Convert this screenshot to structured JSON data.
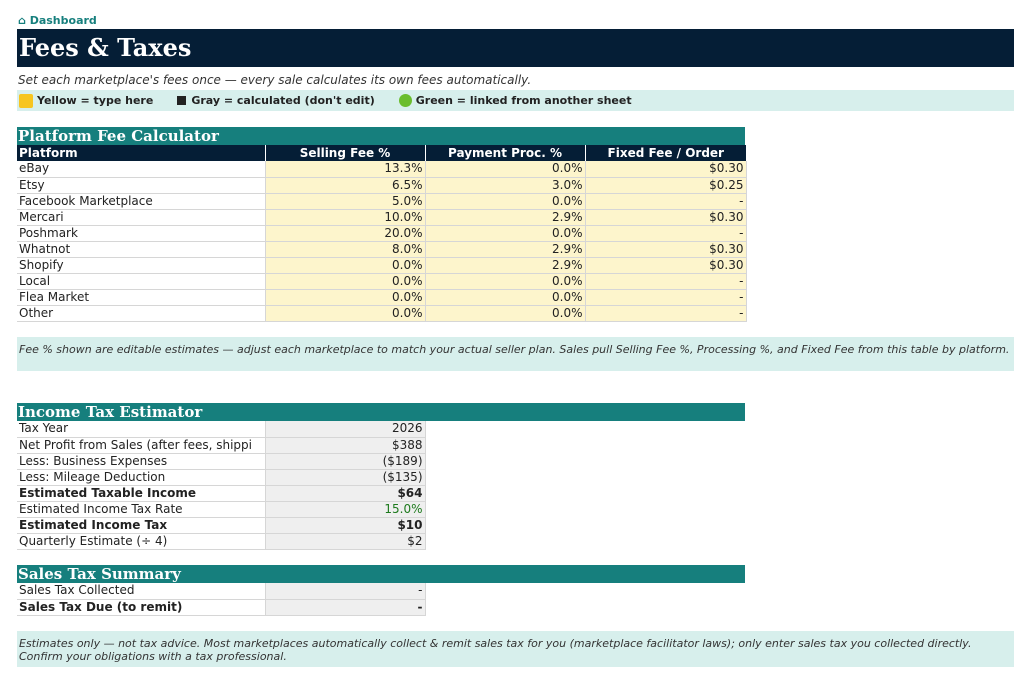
{
  "nav": {
    "dashboard_link": "⌂ Dashboard"
  },
  "page": {
    "title": "Fees & Taxes",
    "subtitle": "Set each marketplace's fees once — every sale calculates its own fees automatically."
  },
  "legend": {
    "yellow": "Yellow = type here",
    "gray": "Gray = calculated (don't edit)",
    "green": "Green = linked from another sheet"
  },
  "fee_calculator": {
    "title": "Platform Fee Calculator",
    "headers": [
      "Platform",
      "Selling Fee %",
      "Payment Proc. %",
      "Fixed Fee / Order"
    ],
    "rows": [
      [
        "eBay",
        "13.3%",
        "0.0%",
        "$0.30"
      ],
      [
        "Etsy",
        "6.5%",
        "3.0%",
        "$0.25"
      ],
      [
        "Facebook Marketplace",
        "5.0%",
        "0.0%",
        "-"
      ],
      [
        "Mercari",
        "10.0%",
        "2.9%",
        "$0.30"
      ],
      [
        "Poshmark",
        "20.0%",
        "0.0%",
        "-"
      ],
      [
        "Whatnot",
        "8.0%",
        "2.9%",
        "$0.30"
      ],
      [
        "Shopify",
        "0.0%",
        "2.9%",
        "$0.30"
      ],
      [
        "Local",
        "0.0%",
        "0.0%",
        "-"
      ],
      [
        "Flea Market",
        "0.0%",
        "0.0%",
        "-"
      ],
      [
        "Other",
        "0.0%",
        "0.0%",
        "-"
      ]
    ],
    "note": "Fee % shown are editable estimates — adjust each marketplace to match your actual seller plan. Sales pull Selling Fee %, Processing %, and Fixed Fee from this table by platform."
  },
  "income_tax": {
    "title": "Income Tax Estimator",
    "rows": [
      {
        "label": "Tax Year",
        "value": "2026",
        "bold": false,
        "green": false
      },
      {
        "label": "Net Profit from Sales (after fees, shippi",
        "value": "$388",
        "bold": false,
        "green": false
      },
      {
        "label": "Less: Business Expenses",
        "value": "($189)",
        "bold": false,
        "green": false
      },
      {
        "label": "Less: Mileage Deduction",
        "value": "($135)",
        "bold": false,
        "green": false
      },
      {
        "label": "Estimated Taxable Income",
        "value": "$64",
        "bold": true,
        "green": false
      },
      {
        "label": "Estimated Income Tax Rate",
        "value": "15.0%",
        "bold": false,
        "green": true
      },
      {
        "label": "Estimated Income Tax",
        "value": "$10",
        "bold": true,
        "green": false
      },
      {
        "label": "Quarterly Estimate (÷ 4)",
        "value": "$2",
        "bold": false,
        "green": false
      }
    ]
  },
  "sales_tax": {
    "title": "Sales Tax Summary",
    "rows": [
      {
        "label": "Sales Tax Collected",
        "value": "-",
        "bold": false
      },
      {
        "label": "Sales Tax Due (to remit)",
        "value": "-",
        "bold": true
      }
    ],
    "note": "Estimates only — not tax advice. Most marketplaces automatically collect & remit sales tax for you (marketplace facilitator laws); only enter sales tax you collected directly. Confirm your obligations with a tax professional."
  }
}
